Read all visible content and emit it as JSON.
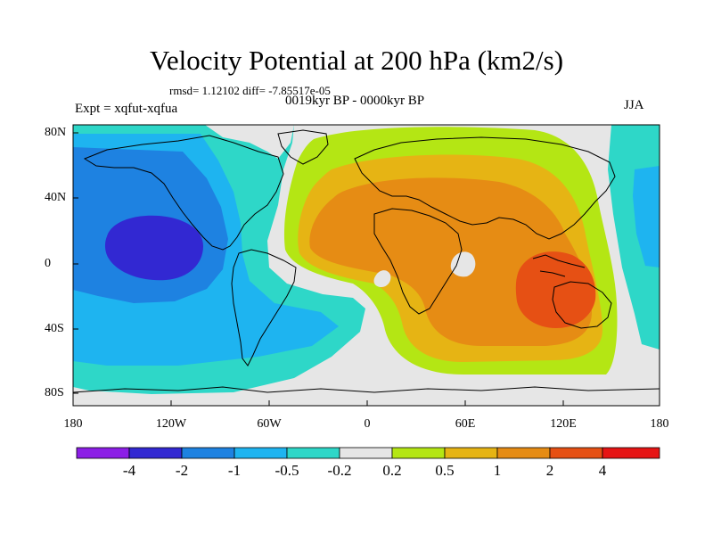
{
  "figure": {
    "title": "Velocity Potential at 200 hPa (km2/s)",
    "stats_line": "rmsd= 1.12102 diff= -7.85517e-05",
    "left_label": "Expt = xqfut-xqfua",
    "center_label": "0019kyr BP - 0000kyr BP",
    "right_label": "JJA"
  },
  "axes": {
    "lat_labels": [
      "80N",
      "40N",
      "0",
      "40S",
      "80S"
    ],
    "lon_labels": [
      "180",
      "120W",
      "60W",
      "0",
      "60E",
      "120E",
      "180"
    ]
  },
  "colorbar": {
    "labels": [
      "-4",
      "-2",
      "-1",
      "-0.5",
      "-0.2",
      "0.2",
      "0.5",
      "1",
      "2",
      "4"
    ],
    "colors": [
      "#8c1ee6",
      "#3228d2",
      "#1e82e1",
      "#1eb4f0",
      "#2ed7c8",
      "#e6e6e6",
      "#b4e614",
      "#e6b414",
      "#e68c14",
      "#e65014",
      "#e61414"
    ]
  },
  "fields": {
    "dark_blue": "#3228d2",
    "blue": "#1e82e1",
    "light_blue": "#1eb4f0",
    "cyan": "#2ed7c8",
    "neutral": "#e6e6e6",
    "yellow_green": "#b4e614",
    "gold": "#e6b414",
    "orange": "#e68c14",
    "red_orange": "#e65014"
  }
}
